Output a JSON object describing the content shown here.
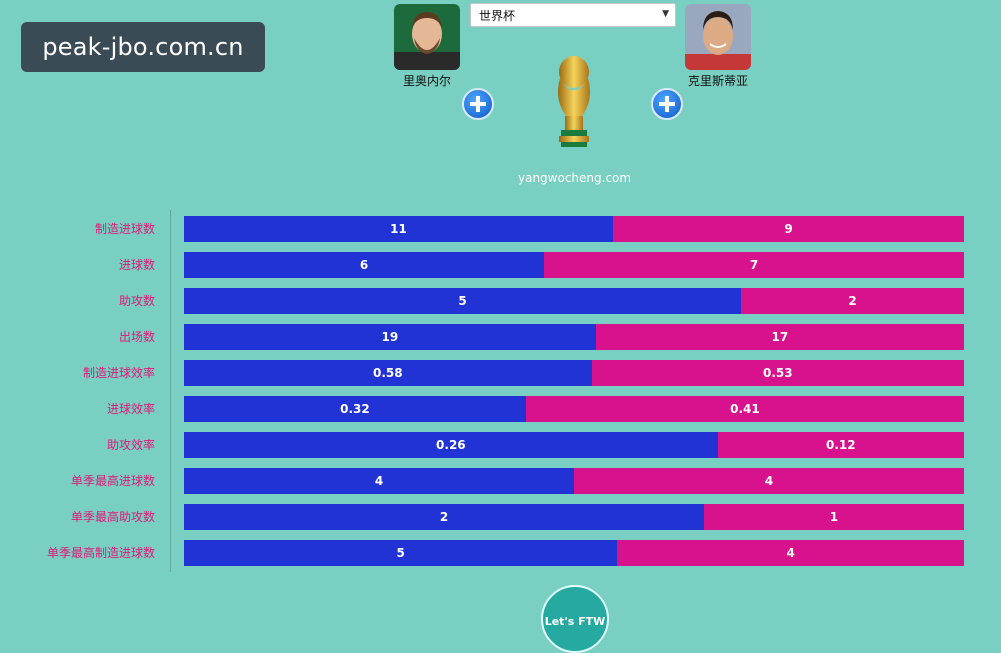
{
  "watermark": "peak-jbo.com.cn",
  "select": {
    "value": "世界杯"
  },
  "players": {
    "left": {
      "name": "里奥内尔"
    },
    "right": {
      "name": "克里斯蒂亚"
    }
  },
  "site": "yangwocheng.com",
  "footer_badge": "Let's FTW",
  "colors": {
    "left_player": "#2233d6",
    "right_player": "#d8128c",
    "background": "#79cfc1",
    "label": "#e0197a"
  },
  "chart_data": {
    "type": "bar",
    "orientation": "horizontal-stacked-100",
    "categories": [
      "制造进球数",
      "进球数",
      "助攻数",
      "出场数",
      "制造进球效率",
      "进球效率",
      "助攻效率",
      "单季最高进球数",
      "单季最高助攻数",
      "单季最高制造进球数"
    ],
    "series": [
      {
        "name": "里奥内尔",
        "values": [
          "11",
          "6",
          "5",
          "19",
          "0.58",
          "0.32",
          "0.26",
          "4",
          "2",
          "5"
        ]
      },
      {
        "name": "克里斯蒂亚",
        "values": [
          "9",
          "7",
          "2",
          "17",
          "0.53",
          "0.41",
          "0.12",
          "4",
          "1",
          "4"
        ]
      }
    ]
  }
}
